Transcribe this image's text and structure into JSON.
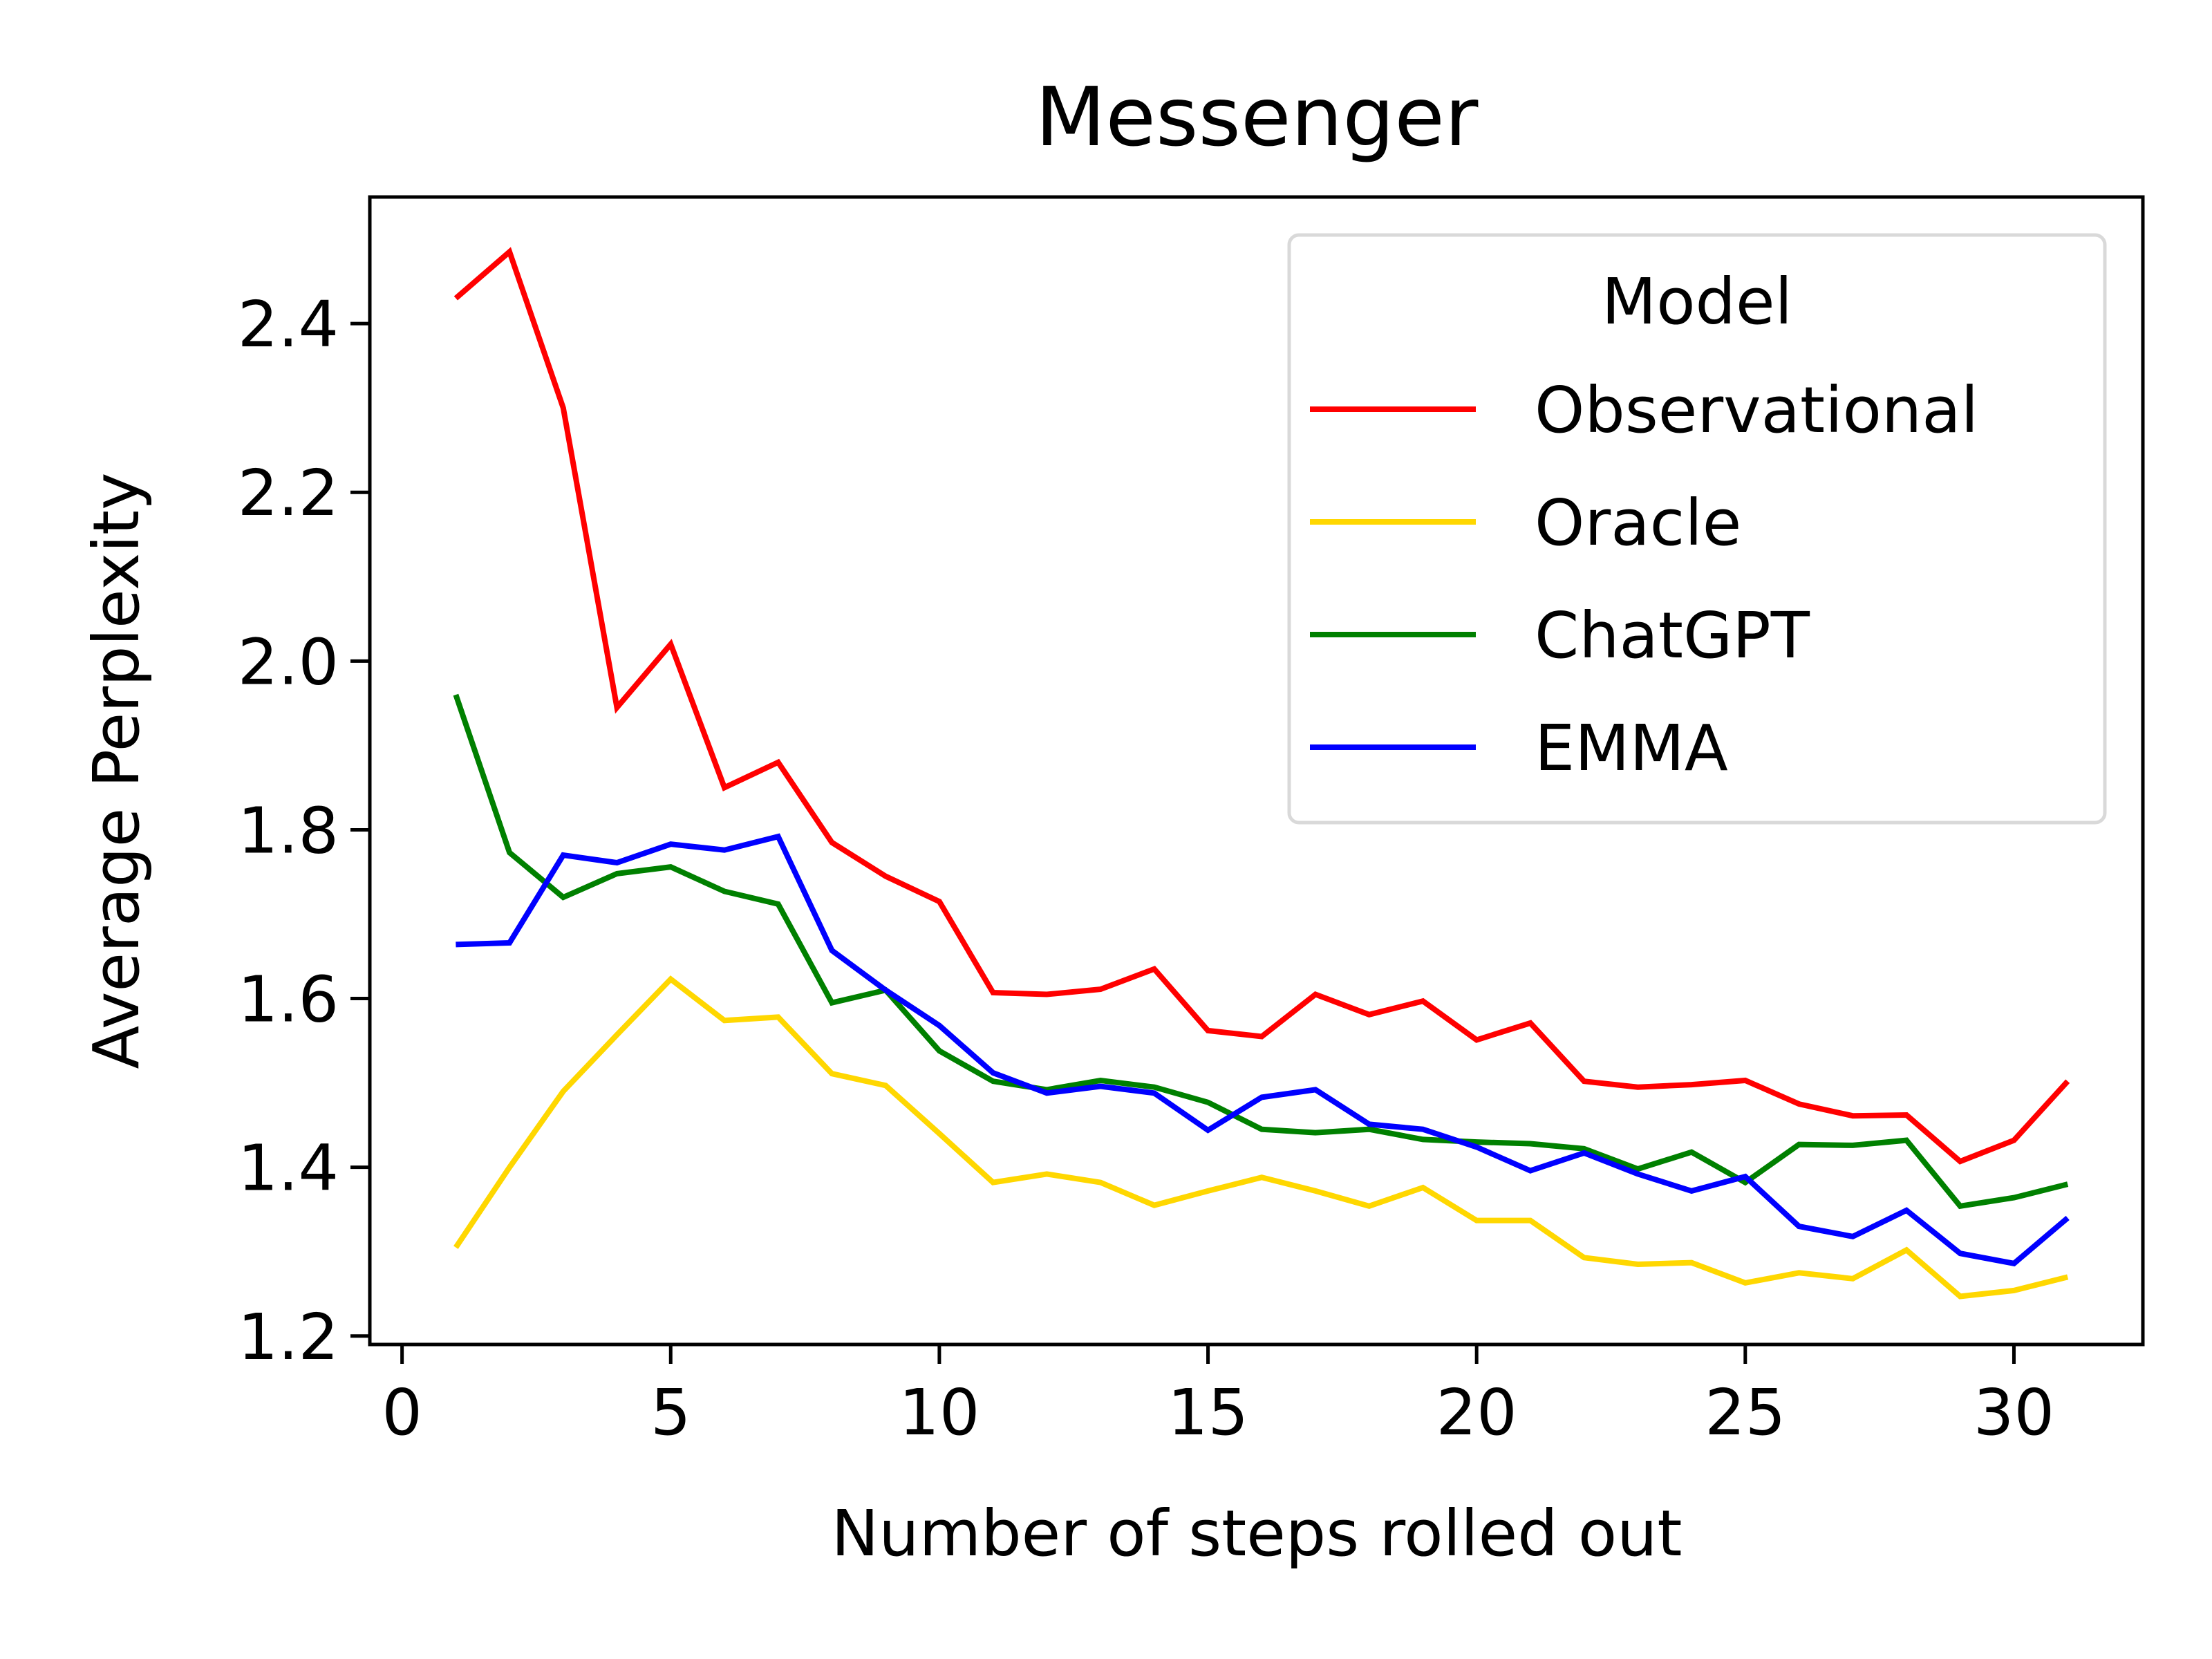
{
  "chart_data": {
    "type": "line",
    "title": "Messenger",
    "xlabel": "Number of steps rolled out",
    "ylabel": "Average Perplexity",
    "xlim": [
      -0.6,
      32.4
    ],
    "ylim": [
      1.19,
      2.55
    ],
    "xticks": [
      0,
      5,
      10,
      15,
      20,
      25,
      30
    ],
    "yticks": [
      1.2,
      1.4,
      1.6,
      1.8,
      2.0,
      2.2,
      2.4
    ],
    "ytick_labels": [
      "1.2",
      "1.4",
      "1.6",
      "1.8",
      "2.0",
      "2.2",
      "2.4"
    ],
    "grid": false,
    "legend": {
      "title": "Model",
      "position": "top-right"
    },
    "x": [
      1,
      2,
      3,
      4,
      5,
      6,
      7,
      8,
      9,
      10,
      11,
      12,
      13,
      14,
      15,
      16,
      17,
      18,
      19,
      20,
      21,
      22,
      23,
      24,
      25,
      26,
      27,
      28,
      29,
      30,
      31
    ],
    "series": [
      {
        "name": "Observational",
        "color": "#ff0000",
        "values": [
          2.43,
          2.485,
          2.3,
          1.945,
          2.02,
          1.85,
          1.88,
          1.785,
          1.745,
          1.715,
          1.607,
          1.605,
          1.611,
          1.635,
          1.562,
          1.555,
          1.605,
          1.581,
          1.597,
          1.551,
          1.571,
          1.502,
          1.495,
          1.498,
          1.503,
          1.475,
          1.461,
          1.462,
          1.407,
          1.432,
          1.502
        ]
      },
      {
        "name": "Oracle",
        "color": "#ffd700",
        "values": [
          1.305,
          1.4,
          1.49,
          1.557,
          1.623,
          1.574,
          1.578,
          1.511,
          1.497,
          1.44,
          1.382,
          1.392,
          1.382,
          1.355,
          1.372,
          1.388,
          1.372,
          1.354,
          1.376,
          1.337,
          1.337,
          1.293,
          1.285,
          1.287,
          1.263,
          1.275,
          1.268,
          1.302,
          1.247,
          1.254,
          1.27
        ]
      },
      {
        "name": "ChatGPT",
        "color": "#008000",
        "values": [
          1.96,
          1.773,
          1.72,
          1.748,
          1.756,
          1.727,
          1.712,
          1.595,
          1.61,
          1.538,
          1.502,
          1.492,
          1.503,
          1.495,
          1.477,
          1.445,
          1.441,
          1.445,
          1.433,
          1.43,
          1.428,
          1.422,
          1.398,
          1.418,
          1.382,
          1.427,
          1.426,
          1.432,
          1.354,
          1.364,
          1.38
        ]
      },
      {
        "name": "EMMA",
        "color": "#0000ff",
        "values": [
          1.664,
          1.666,
          1.77,
          1.761,
          1.783,
          1.776,
          1.792,
          1.657,
          1.61,
          1.568,
          1.512,
          1.488,
          1.496,
          1.488,
          1.444,
          1.483,
          1.492,
          1.451,
          1.445,
          1.424,
          1.396,
          1.417,
          1.392,
          1.372,
          1.389,
          1.33,
          1.318,
          1.349,
          1.298,
          1.286,
          1.34
        ]
      }
    ]
  }
}
